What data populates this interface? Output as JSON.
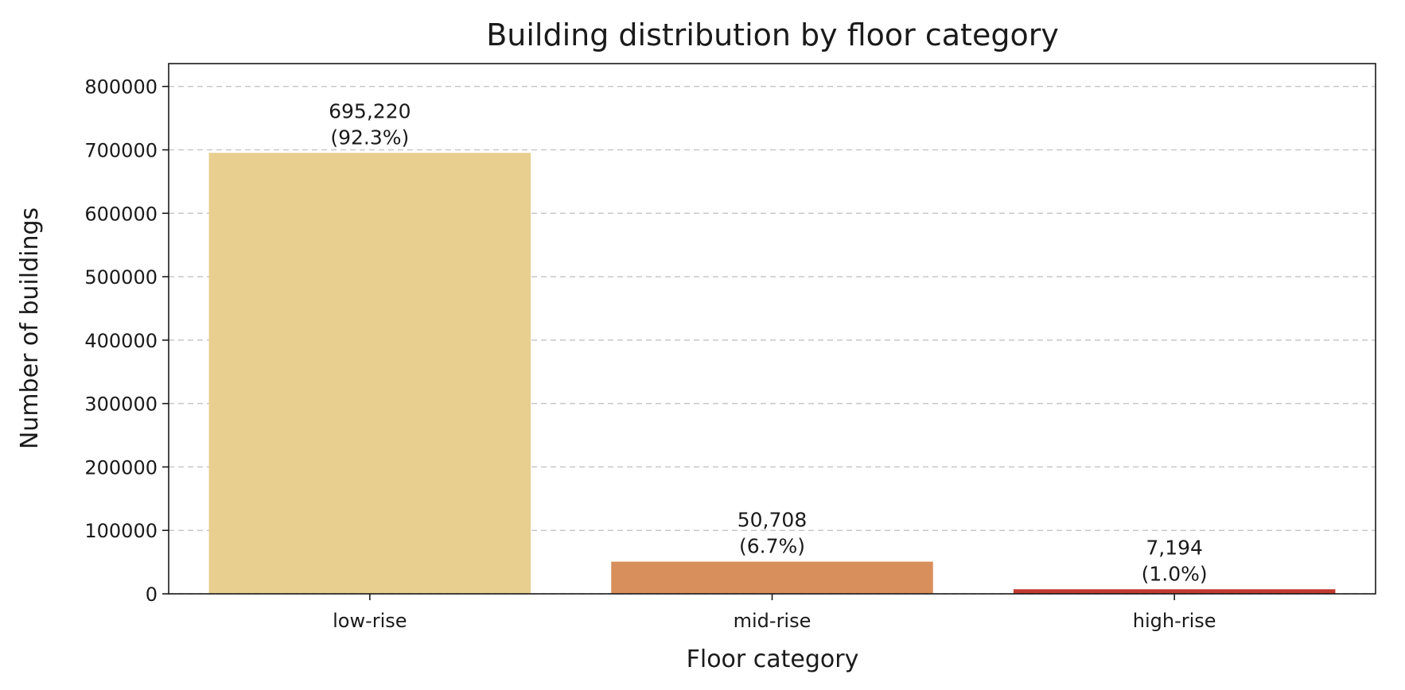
{
  "chart_data": {
    "type": "bar",
    "title": "Building distribution by floor category",
    "xlabel": "Floor category",
    "ylabel": "Number of buildings",
    "categories": [
      "low-rise",
      "mid-rise",
      "high-rise"
    ],
    "values": [
      695220,
      50708,
      7194
    ],
    "value_labels": [
      "695,220",
      "50,708",
      "7,194"
    ],
    "percent_labels": [
      "(92.3%)",
      "(6.7%)",
      "(1.0%)"
    ],
    "colors": [
      "#e8cf8f",
      "#d98f5c",
      "#c0392f"
    ],
    "ylim": [
      0,
      836000
    ],
    "yticks": [
      0,
      100000,
      200000,
      300000,
      400000,
      500000,
      600000,
      700000,
      800000
    ],
    "ytick_labels": [
      "0",
      "100000",
      "200000",
      "300000",
      "400000",
      "500000",
      "600000",
      "700000",
      "800000"
    ],
    "grid": "horizontal dashed",
    "legend": "none"
  }
}
